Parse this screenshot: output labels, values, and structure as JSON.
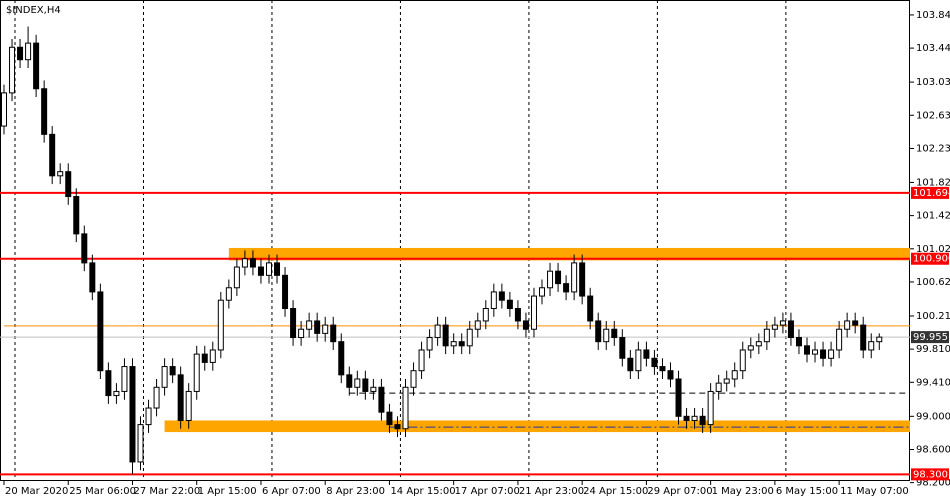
{
  "chart_data": {
    "type": "candlestick",
    "title": "$INDEX,H4",
    "categories": [
      "20 Mar 2020",
      null,
      null,
      null,
      null,
      null,
      null,
      null,
      "25 Mar 06:00",
      null,
      null,
      null,
      null,
      null,
      null,
      null,
      "27 Mar 22:00",
      null,
      null,
      null,
      null,
      null,
      null,
      null,
      "1 Apr 15:00",
      null,
      null,
      null,
      null,
      null,
      null,
      null,
      "6 Apr 07:00",
      null,
      null,
      null,
      null,
      null,
      null,
      null,
      "8 Apr 23:00",
      null,
      null,
      null,
      null,
      null,
      null,
      null,
      "14 Apr 15:00",
      null,
      null,
      null,
      null,
      null,
      null,
      null,
      "17 Apr 07:00",
      null,
      null,
      null,
      null,
      null,
      null,
      null,
      "21 Apr 23:00",
      null,
      null,
      null,
      null,
      null,
      null,
      null,
      "24 Apr 15:00",
      null,
      null,
      null,
      null,
      null,
      null,
      null,
      "29 Apr 07:00",
      null,
      null,
      null,
      null,
      null,
      null,
      null,
      "1 May 23:00",
      null,
      null,
      null,
      null,
      null,
      null,
      null,
      "6 May 15:00",
      null,
      null,
      null,
      null,
      null,
      null,
      null,
      "11 May 07:00",
      null,
      null,
      null,
      null,
      null
    ],
    "open": [
      102.5,
      102.9,
      103.45,
      103.3,
      103.5,
      102.95,
      102.4,
      101.9,
      101.95,
      101.65,
      101.2,
      100.85,
      100.5,
      99.55,
      99.25,
      99.3,
      99.6,
      98.45,
      98.9,
      99.1,
      99.35,
      99.6,
      99.5,
      98.95,
      99.3,
      99.75,
      99.65,
      99.8,
      100.4,
      100.55,
      100.8,
      100.9,
      100.8,
      100.7,
      100.85,
      100.7,
      100.3,
      99.95,
      100.05,
      100.15,
      100.0,
      100.1,
      99.9,
      99.5,
      99.35,
      99.45,
      99.3,
      99.35,
      99.05,
      98.9,
      98.85,
      99.35,
      99.55,
      99.8,
      99.95,
      100.1,
      99.85,
      99.9,
      99.85,
      100.05,
      100.15,
      100.3,
      100.5,
      100.4,
      100.3,
      100.15,
      100.05,
      100.45,
      100.55,
      100.75,
      100.6,
      100.5,
      100.85,
      100.45,
      100.15,
      99.9,
      100.05,
      99.95,
      99.7,
      99.55,
      99.8,
      99.7,
      99.6,
      99.55,
      99.45,
      99.0,
      98.95,
      99.0,
      98.9,
      99.3,
      99.4,
      99.45,
      99.55,
      99.8,
      99.85,
      99.9,
      100.05,
      100.1,
      100.15,
      99.95,
      99.85,
      99.75,
      99.8,
      99.7,
      99.8,
      100.05,
      100.15,
      100.1,
      99.8,
      99.9
    ],
    "high": [
      103.0,
      103.55,
      103.55,
      103.7,
      103.6,
      103.05,
      102.5,
      102.05,
      102.05,
      101.75,
      101.3,
      100.95,
      100.6,
      99.65,
      99.4,
      99.7,
      99.7,
      99.0,
      99.2,
      99.45,
      99.7,
      99.7,
      99.6,
      99.4,
      99.85,
      99.85,
      99.9,
      100.5,
      100.65,
      100.9,
      101.0,
      101.0,
      100.9,
      100.95,
      100.95,
      100.8,
      100.4,
      100.15,
      100.25,
      100.25,
      100.2,
      100.2,
      100.0,
      99.6,
      99.55,
      99.55,
      99.45,
      99.45,
      99.15,
      99.0,
      99.45,
      99.65,
      99.9,
      100.05,
      100.2,
      100.2,
      100.0,
      100.0,
      100.15,
      100.25,
      100.4,
      100.6,
      100.6,
      100.5,
      100.4,
      100.25,
      100.55,
      100.65,
      100.85,
      100.85,
      100.7,
      100.95,
      100.95,
      100.55,
      100.25,
      100.15,
      100.15,
      100.05,
      99.8,
      99.9,
      99.9,
      99.8,
      99.7,
      99.65,
      99.55,
      99.1,
      99.1,
      99.1,
      99.4,
      99.5,
      99.55,
      99.65,
      99.9,
      99.95,
      100.0,
      100.15,
      100.2,
      100.25,
      100.25,
      100.05,
      99.95,
      99.9,
      99.9,
      99.9,
      100.15,
      100.25,
      100.25,
      100.2,
      100.0,
      100.0
    ],
    "low": [
      102.4,
      102.8,
      103.2,
      103.2,
      102.85,
      102.3,
      101.8,
      101.8,
      101.55,
      101.1,
      100.75,
      100.4,
      99.45,
      99.15,
      99.15,
      99.2,
      98.3,
      98.35,
      98.8,
      99.0,
      99.25,
      99.4,
      98.85,
      98.85,
      99.2,
      99.55,
      99.55,
      99.7,
      100.3,
      100.45,
      100.7,
      100.7,
      100.6,
      100.6,
      100.6,
      100.2,
      99.85,
      99.85,
      99.95,
      99.9,
      99.9,
      99.8,
      99.4,
      99.25,
      99.25,
      99.2,
      99.2,
      98.95,
      98.8,
      98.75,
      98.75,
      99.25,
      99.45,
      99.7,
      99.85,
      99.75,
      99.75,
      99.75,
      99.75,
      99.95,
      100.05,
      100.2,
      100.3,
      100.2,
      100.05,
      99.95,
      99.95,
      100.35,
      100.45,
      100.5,
      100.4,
      100.4,
      100.35,
      100.05,
      99.8,
      99.8,
      99.85,
      99.6,
      99.45,
      99.45,
      99.6,
      99.5,
      99.45,
      99.35,
      98.9,
      98.85,
      98.85,
      98.8,
      98.8,
      99.2,
      99.3,
      99.35,
      99.45,
      99.7,
      99.75,
      99.8,
      99.95,
      100.0,
      99.85,
      99.75,
      99.65,
      99.65,
      99.6,
      99.6,
      99.7,
      99.95,
      100.0,
      99.7,
      99.7,
      99.8
    ],
    "close": [
      102.9,
      103.45,
      103.3,
      103.5,
      102.95,
      102.4,
      101.9,
      101.95,
      101.65,
      101.2,
      100.85,
      100.5,
      99.55,
      99.25,
      99.3,
      99.6,
      98.45,
      98.9,
      99.1,
      99.35,
      99.6,
      99.5,
      98.95,
      99.3,
      99.75,
      99.65,
      99.8,
      100.4,
      100.55,
      100.8,
      100.9,
      100.8,
      100.7,
      100.85,
      100.7,
      100.3,
      99.95,
      100.05,
      100.15,
      100.0,
      100.1,
      99.9,
      99.5,
      99.35,
      99.45,
      99.3,
      99.35,
      99.05,
      98.9,
      98.85,
      99.35,
      99.55,
      99.8,
      99.95,
      100.1,
      99.85,
      99.9,
      99.85,
      100.05,
      100.15,
      100.3,
      100.5,
      100.4,
      100.3,
      100.15,
      100.05,
      100.45,
      100.55,
      100.75,
      100.6,
      100.5,
      100.85,
      100.45,
      100.15,
      99.9,
      100.05,
      99.95,
      99.7,
      99.55,
      99.8,
      99.7,
      99.6,
      99.55,
      99.45,
      99.0,
      98.95,
      99.0,
      98.9,
      99.3,
      99.4,
      99.45,
      99.55,
      99.8,
      99.85,
      99.9,
      100.05,
      100.1,
      100.15,
      99.95,
      99.85,
      99.75,
      99.8,
      99.7,
      99.8,
      100.05,
      100.15,
      100.1,
      99.8,
      99.9,
      99.955
    ],
    "ylim": [
      98.22,
      104.02
    ],
    "yticks": [
      {
        "value": 103.84,
        "label": "103.840"
      },
      {
        "value": 103.44,
        "label": "103.440"
      },
      {
        "value": 103.03,
        "label": "103.030"
      },
      {
        "value": 102.63,
        "label": "102.630"
      },
      {
        "value": 102.23,
        "label": "102.230"
      },
      {
        "value": 101.82,
        "label": "101.820"
      },
      {
        "value": 101.42,
        "label": "101.420"
      },
      {
        "value": 101.02,
        "label": "101.020"
      },
      {
        "value": 100.62,
        "label": "100.620"
      },
      {
        "value": 100.21,
        "label": "100.210"
      },
      {
        "value": 99.81,
        "label": "99.810"
      },
      {
        "value": 99.41,
        "label": "99.410"
      },
      {
        "value": 99.0,
        "label": "99.000"
      },
      {
        "value": 98.6,
        "label": "98.600"
      },
      {
        "value": 98.2,
        "label": "98.200"
      }
    ],
    "levels": [
      {
        "value": 101.694,
        "label": "101.694",
        "color": "#ff0000"
      },
      {
        "value": 100.9,
        "label": "100.900",
        "color": "#ff0000"
      },
      {
        "value": 99.955,
        "label": "99.955",
        "color": "#c0c0c0"
      },
      {
        "value": 98.3,
        "label": "98.300",
        "color": "#ff0000"
      }
    ],
    "lines": [
      {
        "value": 100.09,
        "color": "#ff8c00",
        "from": 0
      },
      {
        "value": 99.28,
        "color": "#000000",
        "from": 43,
        "dash": "6,4"
      },
      {
        "value": 98.87,
        "color": "#1e3a9e",
        "from": 48,
        "dash": "10,3,2,3"
      }
    ],
    "zones": [
      {
        "top": 101.03,
        "bottom": 100.88,
        "from": 28,
        "color": "#ffa500"
      },
      {
        "top": 98.95,
        "bottom": 98.81,
        "from": 20,
        "color": "#ffa500"
      }
    ],
    "grid": true
  }
}
